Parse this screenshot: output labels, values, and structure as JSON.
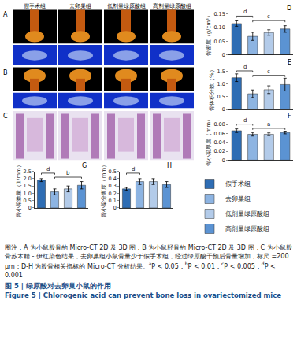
{
  "chart_data": [
    {
      "type": "bar",
      "panel": "D",
      "y_label": "骨密度（g/cm³）",
      "categories": [
        "假手术组",
        "去卵巢组",
        "低剂量绿原酸组",
        "高剂量绿原酸组"
      ],
      "values": [
        0.115,
        0.068,
        0.082,
        0.095
      ],
      "errors": [
        0.01,
        0.015,
        0.01,
        0.012
      ],
      "colors": [
        "#2e6db4",
        "#8db4e2",
        "#b3cbe9",
        "#5b93d3"
      ],
      "ylim": [
        0,
        0.15
      ],
      "yticks": [
        0,
        0.05,
        {
          "value": 0.1,
          "label": "0.10"
        },
        0.15
      ],
      "significance": [
        {
          "from": 0,
          "to": 1,
          "label": "d"
        },
        {
          "from": 1,
          "to": 3,
          "label": "c"
        }
      ],
      "tick_labels": "y",
      "grid": false
    },
    {
      "type": "bar",
      "panel": "E",
      "y_label": "骨体积分数（%）",
      "categories": [
        "假手术组",
        "去卵巢组",
        "低剂量绿原酸组",
        "高剂量绿原酸组"
      ],
      "values": [
        1.25,
        0.62,
        0.78,
        0.98
      ],
      "errors": [
        0.15,
        0.15,
        0.15,
        0.25
      ],
      "colors": [
        "#2e6db4",
        "#8db4e2",
        "#b3cbe9",
        "#5b93d3"
      ],
      "ylim": [
        0,
        1.6
      ],
      "yticks": [
        0,
        0.5,
        {
          "value": 1,
          "label": "1.0"
        },
        1.5
      ],
      "significance": [
        {
          "from": 0,
          "to": 1,
          "label": "d"
        },
        {
          "from": 1,
          "to": 3,
          "label": "c"
        }
      ],
      "tick_labels": "y",
      "grid": false
    },
    {
      "type": "bar",
      "panel": "F",
      "y_label": "骨小梁厚度（mm）",
      "categories": [
        "假手术组",
        "去卵巢组",
        "低剂量绿原酸组",
        "高剂量绿原酸组"
      ],
      "values": [
        0.066,
        0.058,
        0.058,
        0.062
      ],
      "errors": [
        0.004,
        0.004,
        0.003,
        0.003
      ],
      "colors": [
        "#2e6db4",
        "#8db4e2",
        "#b3cbe9",
        "#5b93d3"
      ],
      "ylim": [
        0,
        0.085
      ],
      "yticks": [
        0,
        0.02,
        0.04,
        0.06,
        0.08
      ],
      "significance": [
        {
          "from": 0,
          "to": 1,
          "label": "d"
        },
        {
          "from": 1,
          "to": 3,
          "label": "a"
        }
      ],
      "tick_labels": "y",
      "grid": false
    },
    {
      "type": "bar",
      "panel": "G",
      "y_label": "骨小梁数量（1/mm）",
      "categories": [
        "假手术组",
        "去卵巢组",
        "低剂量绿原酸组",
        "高剂量绿原酸组"
      ],
      "values": [
        1.9,
        1.1,
        1.3,
        1.55
      ],
      "errors": [
        0.1,
        0.2,
        0.2,
        0.25
      ],
      "colors": [
        "#2e6db4",
        "#8db4e2",
        "#b3cbe9",
        "#5b93d3"
      ],
      "ylim": [
        0,
        2.5
      ],
      "yticks": [
        0,
        0.5,
        {
          "value": 1,
          "label": "1.0"
        },
        1.5,
        {
          "value": 2,
          "label": "2.0"
        },
        2.5
      ],
      "significance": [
        {
          "from": 0,
          "to": 1,
          "label": "d"
        },
        {
          "from": 1,
          "to": 3,
          "label": "b"
        }
      ],
      "tick_labels": "y",
      "grid": false,
      "legend": "right"
    },
    {
      "type": "bar",
      "panel": "H",
      "y_label": "骨小梁分离度（mm）",
      "categories": [
        "假手术组",
        "去卵巢组",
        "低剂量绿原酸组",
        "高剂量绿原酸组"
      ],
      "values": [
        0.26,
        0.36,
        0.36,
        0.32
      ],
      "errors": [
        0.02,
        0.04,
        0.04,
        0.04
      ],
      "colors": [
        "#2e6db4",
        "#8db4e2",
        "#b3cbe9",
        "#5b93d3"
      ],
      "ylim": [
        0,
        0.5
      ],
      "yticks": [
        0,
        0.1,
        0.2,
        0.3,
        0.4,
        0.5
      ],
      "significance": [
        {
          "from": 0,
          "to": 1,
          "label": "d"
        }
      ],
      "tick_labels": "y",
      "grid": false
    }
  ],
  "figure": {
    "image_panels": {
      "group_labels": [
        "假手术组",
        "去卵巢组",
        "低剂量绿原酸组",
        "高剂量绿原酸组"
      ],
      "letters": [
        "A",
        "B",
        "C"
      ]
    },
    "caption": [
      {
        "text": "图注：A 为小鼠股骨的 Micro-CT 2D 及 3D 图；B 为小鼠胫骨的 Micro-CT 2D 及 3D 图；C 为小鼠股骨苏木精 - 伊红染色结果，去卵巢组小鼠骨量少于假手术组，经过绿原酸干预后骨量增加，标尺 =200 μm；D-H 为股骨相关指标的 Micro-CT 分析结果。"
      },
      {
        "sup": "a"
      },
      {
        "text": "P < 0.05，"
      },
      {
        "sup": "b"
      },
      {
        "text": "P < 0.01，"
      },
      {
        "sup": "c"
      },
      {
        "text": "P < 0.005，"
      },
      {
        "sup": "d"
      },
      {
        "text": "P < 0.001"
      }
    ],
    "titles": [
      "图 5 | 绿原酸对去卵巢小鼠的作用",
      "Figure 5 | Chlorogenic acid can prevent bone loss in ovariectomized mice"
    ]
  }
}
